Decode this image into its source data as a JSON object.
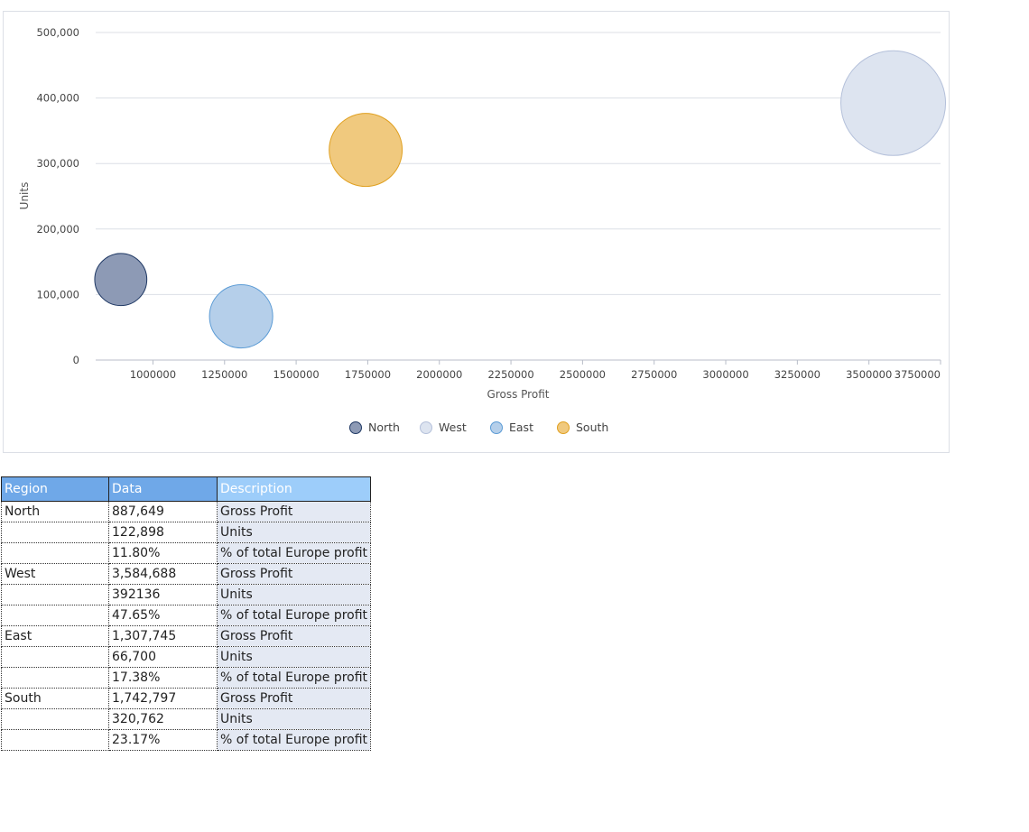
{
  "chart_data": {
    "type": "scatter",
    "variant": "bubble",
    "title": "",
    "xlabel": "Gross Profit",
    "ylabel": "Units",
    "xlim": [
      800000,
      3750000
    ],
    "ylim": [
      0,
      500000
    ],
    "x_ticks": [
      1000000,
      1250000,
      1500000,
      1750000,
      2000000,
      2250000,
      2500000,
      2750000,
      3000000,
      3250000,
      3500000,
      3750000
    ],
    "x_tick_labels": [
      "1000000",
      "1250000",
      "1500000",
      "1750000",
      "2000000",
      "2250000",
      "2500000",
      "2750000",
      "3000000",
      "3250000",
      "3500000",
      "3750000"
    ],
    "y_ticks": [
      0,
      100000,
      200000,
      300000,
      400000,
      500000
    ],
    "y_tick_labels": [
      "0",
      "100,000",
      "200,000",
      "300,000",
      "400,000",
      "500,000"
    ],
    "grid": "horizontal",
    "legend_position": "bottom",
    "bubble_size_measure": "% of total Europe profit",
    "series": [
      {
        "name": "North",
        "x": 887649,
        "y": 122898,
        "size": 11.8,
        "color": "#8d9ab5",
        "stroke": "#1f3864"
      },
      {
        "name": "West",
        "x": 3584688,
        "y": 392136,
        "size": 47.65,
        "color": "#dde4f0",
        "stroke": "#b4c0da"
      },
      {
        "name": "East",
        "x": 1307745,
        "y": 66700,
        "size": 17.38,
        "color": "#b5cfea",
        "stroke": "#5b9bd5"
      },
      {
        "name": "South",
        "x": 1742797,
        "y": 320762,
        "size": 23.17,
        "color": "#f0c97e",
        "stroke": "#e0a020"
      }
    ]
  },
  "table": {
    "headers": {
      "region": "Region",
      "data": "Data",
      "description": "Description"
    },
    "rows": [
      {
        "region": "North",
        "data": "887,649",
        "description": "Gross Profit"
      },
      {
        "region": "",
        "data": "122,898",
        "description": "Units"
      },
      {
        "region": "",
        "data": "11.80%",
        "description": "% of total Europe profit"
      },
      {
        "region": "West",
        "data": "3,584,688",
        "description": "Gross Profit"
      },
      {
        "region": "",
        "data": "392136",
        "description": "Units"
      },
      {
        "region": "",
        "data": "47.65%",
        "description": "% of total Europe profit"
      },
      {
        "region": "East",
        "data": "1,307,745",
        "description": "Gross Profit"
      },
      {
        "region": "",
        "data": "66,700",
        "description": "Units"
      },
      {
        "region": "",
        "data": "17.38%",
        "description": "% of total Europe profit"
      },
      {
        "region": "South",
        "data": "1,742,797",
        "description": "Gross Profit"
      },
      {
        "region": "",
        "data": "320,762",
        "description": "Units"
      },
      {
        "region": "",
        "data": "23.17%",
        "description": "% of total Europe profit"
      }
    ]
  }
}
